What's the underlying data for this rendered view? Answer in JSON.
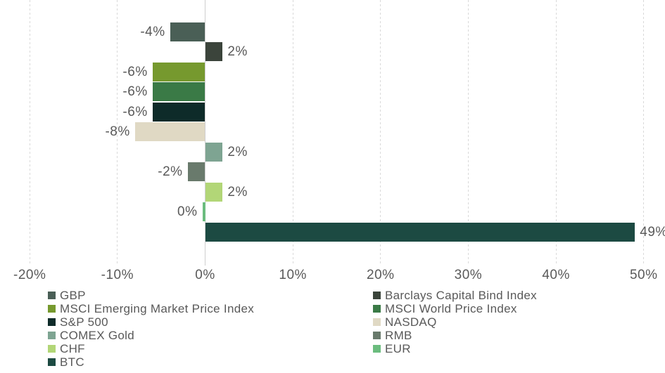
{
  "chart_data": {
    "type": "bar",
    "orientation": "horizontal",
    "title": "",
    "xlabel": "",
    "ylabel": "",
    "xlim": [
      -20,
      50
    ],
    "x_tick_values": [
      -20,
      -10,
      0,
      10,
      20,
      30,
      40,
      50
    ],
    "x_tick_labels": [
      "-20%",
      "-10%",
      "0%",
      "10%",
      "20%",
      "30%",
      "40%",
      "50%"
    ],
    "grid": "vertical dashed gridlines",
    "legend_position": "bottom, two columns",
    "series": [
      {
        "name": "GBP",
        "value": -4,
        "label": "-4%",
        "color": "#4a5f56"
      },
      {
        "name": "Barclays Capital Bind Index",
        "value": 2,
        "label": "2%",
        "color": "#3b443b"
      },
      {
        "name": "MSCI Emerging Market Price Index",
        "value": -6,
        "label": "-6%",
        "color": "#76992e"
      },
      {
        "name": "MSCI World Price Index",
        "value": -6,
        "label": "-6%",
        "color": "#3a7a46"
      },
      {
        "name": "S&P 500",
        "value": -6,
        "label": "-6%",
        "color": "#0e2b29"
      },
      {
        "name": "NASDAQ",
        "value": -8,
        "label": "-8%",
        "color": "#e0d9c4"
      },
      {
        "name": "COMEX Gold",
        "value": 2,
        "label": "2%",
        "color": "#7ea492"
      },
      {
        "name": "RMB",
        "value": -2,
        "label": "-2%",
        "color": "#697a6c"
      },
      {
        "name": "CHF",
        "value": 2,
        "label": "2%",
        "color": "#b2d677"
      },
      {
        "name": "EUR",
        "value": 0,
        "label": "0%",
        "color": "#6bbc7e"
      },
      {
        "name": "BTC",
        "value": 49,
        "label": "49%",
        "color": "#1c4a42"
      }
    ],
    "colors": {
      "text": "#595959",
      "gridline": "#d9d9d9"
    }
  }
}
